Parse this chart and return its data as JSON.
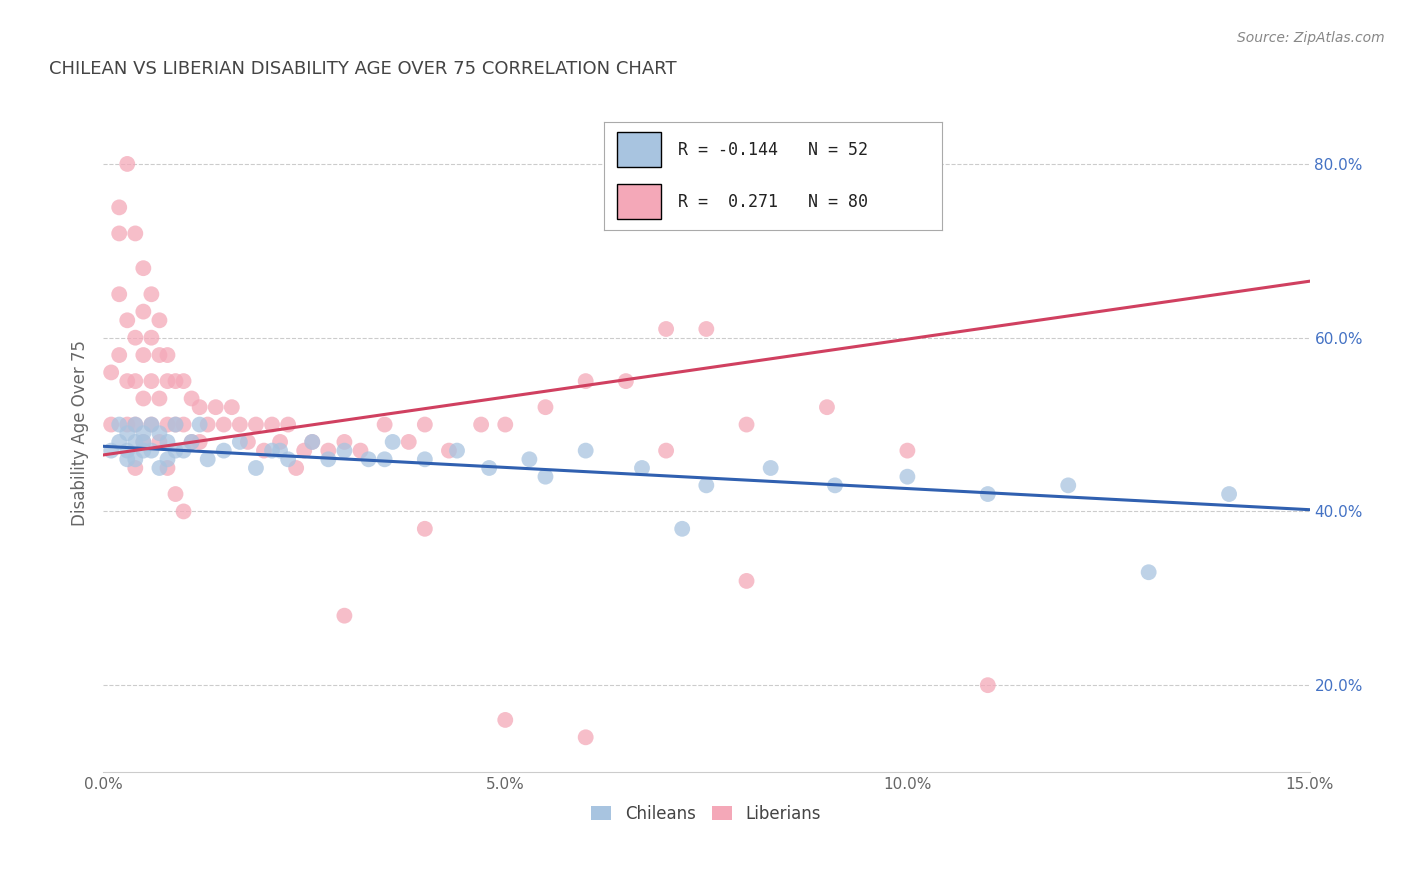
{
  "title": "CHILEAN VS LIBERIAN DISABILITY AGE OVER 75 CORRELATION CHART",
  "ylabel": "Disability Age Over 75",
  "source_text": "Source: ZipAtlas.com",
  "xlim": [
    0.0,
    0.15
  ],
  "ylim": [
    0.1,
    0.88
  ],
  "xticks": [
    0.0,
    0.05,
    0.1,
    0.15
  ],
  "xticklabels": [
    "0.0%",
    "5.0%",
    "10.0%",
    "15.0%"
  ],
  "yticks": [
    0.2,
    0.4,
    0.6,
    0.8
  ],
  "yticklabels": [
    "20.0%",
    "40.0%",
    "60.0%",
    "80.0%"
  ],
  "chilean_color": "#a8c4e0",
  "liberian_color": "#f4a8b8",
  "chilean_line_color": "#3060b0",
  "liberian_line_color": "#d04060",
  "R_chilean": -0.144,
  "N_chilean": 52,
  "R_liberian": 0.271,
  "N_liberian": 80,
  "legend_labels": [
    "Chileans",
    "Liberians"
  ],
  "chilean_line_y0": 0.475,
  "chilean_line_y1": 0.402,
  "liberian_line_y0": 0.465,
  "liberian_line_y1": 0.665,
  "chilean_points_x": [
    0.001,
    0.002,
    0.002,
    0.003,
    0.003,
    0.003,
    0.004,
    0.004,
    0.004,
    0.005,
    0.005,
    0.005,
    0.006,
    0.006,
    0.007,
    0.007,
    0.008,
    0.008,
    0.009,
    0.009,
    0.01,
    0.011,
    0.012,
    0.013,
    0.015,
    0.017,
    0.019,
    0.021,
    0.023,
    0.026,
    0.028,
    0.03,
    0.033,
    0.036,
    0.04,
    0.044,
    0.048,
    0.053,
    0.06,
    0.067,
    0.075,
    0.083,
    0.091,
    0.1,
    0.11,
    0.12,
    0.13,
    0.14,
    0.022,
    0.035,
    0.055,
    0.072
  ],
  "chilean_points_y": [
    0.47,
    0.48,
    0.5,
    0.47,
    0.49,
    0.46,
    0.48,
    0.5,
    0.46,
    0.47,
    0.49,
    0.48,
    0.5,
    0.47,
    0.49,
    0.45,
    0.48,
    0.46,
    0.5,
    0.47,
    0.47,
    0.48,
    0.5,
    0.46,
    0.47,
    0.48,
    0.45,
    0.47,
    0.46,
    0.48,
    0.46,
    0.47,
    0.46,
    0.48,
    0.46,
    0.47,
    0.45,
    0.46,
    0.47,
    0.45,
    0.43,
    0.45,
    0.43,
    0.44,
    0.42,
    0.43,
    0.33,
    0.42,
    0.47,
    0.46,
    0.44,
    0.38
  ],
  "liberian_points_x": [
    0.001,
    0.001,
    0.002,
    0.002,
    0.002,
    0.003,
    0.003,
    0.003,
    0.004,
    0.004,
    0.004,
    0.004,
    0.005,
    0.005,
    0.005,
    0.005,
    0.006,
    0.006,
    0.006,
    0.007,
    0.007,
    0.007,
    0.008,
    0.008,
    0.008,
    0.009,
    0.009,
    0.01,
    0.01,
    0.011,
    0.011,
    0.012,
    0.012,
    0.013,
    0.014,
    0.015,
    0.016,
    0.017,
    0.018,
    0.019,
    0.02,
    0.021,
    0.022,
    0.023,
    0.024,
    0.025,
    0.026,
    0.028,
    0.03,
    0.032,
    0.035,
    0.038,
    0.04,
    0.043,
    0.047,
    0.05,
    0.055,
    0.06,
    0.065,
    0.07,
    0.075,
    0.08,
    0.09,
    0.1,
    0.11,
    0.04,
    0.03,
    0.05,
    0.06,
    0.07,
    0.08,
    0.002,
    0.003,
    0.004,
    0.005,
    0.006,
    0.007,
    0.008,
    0.009,
    0.01
  ],
  "liberian_points_y": [
    0.56,
    0.5,
    0.65,
    0.58,
    0.72,
    0.62,
    0.55,
    0.5,
    0.6,
    0.55,
    0.5,
    0.45,
    0.63,
    0.58,
    0.53,
    0.48,
    0.6,
    0.55,
    0.5,
    0.58,
    0.53,
    0.48,
    0.58,
    0.55,
    0.5,
    0.55,
    0.5,
    0.55,
    0.5,
    0.53,
    0.48,
    0.52,
    0.48,
    0.5,
    0.52,
    0.5,
    0.52,
    0.5,
    0.48,
    0.5,
    0.47,
    0.5,
    0.48,
    0.5,
    0.45,
    0.47,
    0.48,
    0.47,
    0.48,
    0.47,
    0.5,
    0.48,
    0.5,
    0.47,
    0.5,
    0.5,
    0.52,
    0.55,
    0.55,
    0.61,
    0.61,
    0.5,
    0.52,
    0.47,
    0.2,
    0.38,
    0.28,
    0.16,
    0.14,
    0.47,
    0.32,
    0.75,
    0.8,
    0.72,
    0.68,
    0.65,
    0.62,
    0.45,
    0.42,
    0.4
  ]
}
